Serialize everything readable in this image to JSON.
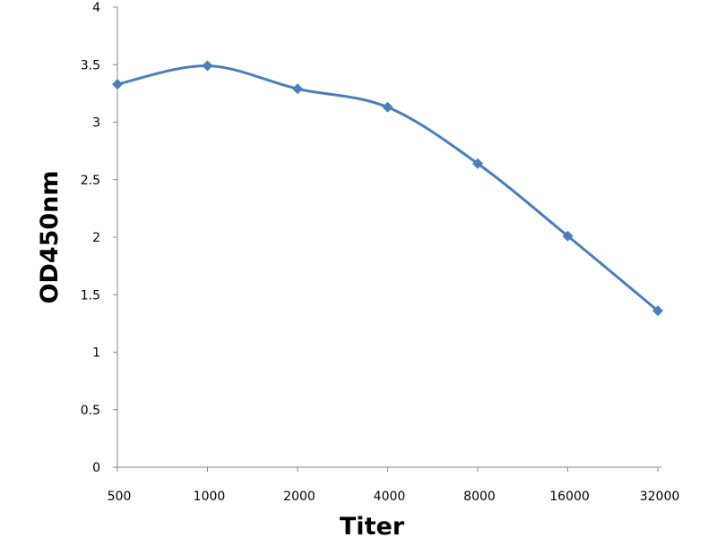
{
  "chart_data": {
    "type": "line",
    "title": "",
    "xlabel": "Titer",
    "ylabel": "OD450nm",
    "categories": [
      "500",
      "1000",
      "2000",
      "4000",
      "8000",
      "16000",
      "32000"
    ],
    "series": [
      {
        "values": [
          3.33,
          3.49,
          3.29,
          3.13,
          2.64,
          2.01,
          1.36
        ],
        "color": "#4a7ebb",
        "marker": "diamond",
        "smooth": true
      }
    ],
    "ylim": [
      0,
      4
    ],
    "yticks": [
      "0",
      "0.5",
      "1",
      "1.5",
      "2",
      "2.5",
      "3",
      "3.5",
      "4"
    ],
    "grid": false,
    "legend": "none"
  }
}
